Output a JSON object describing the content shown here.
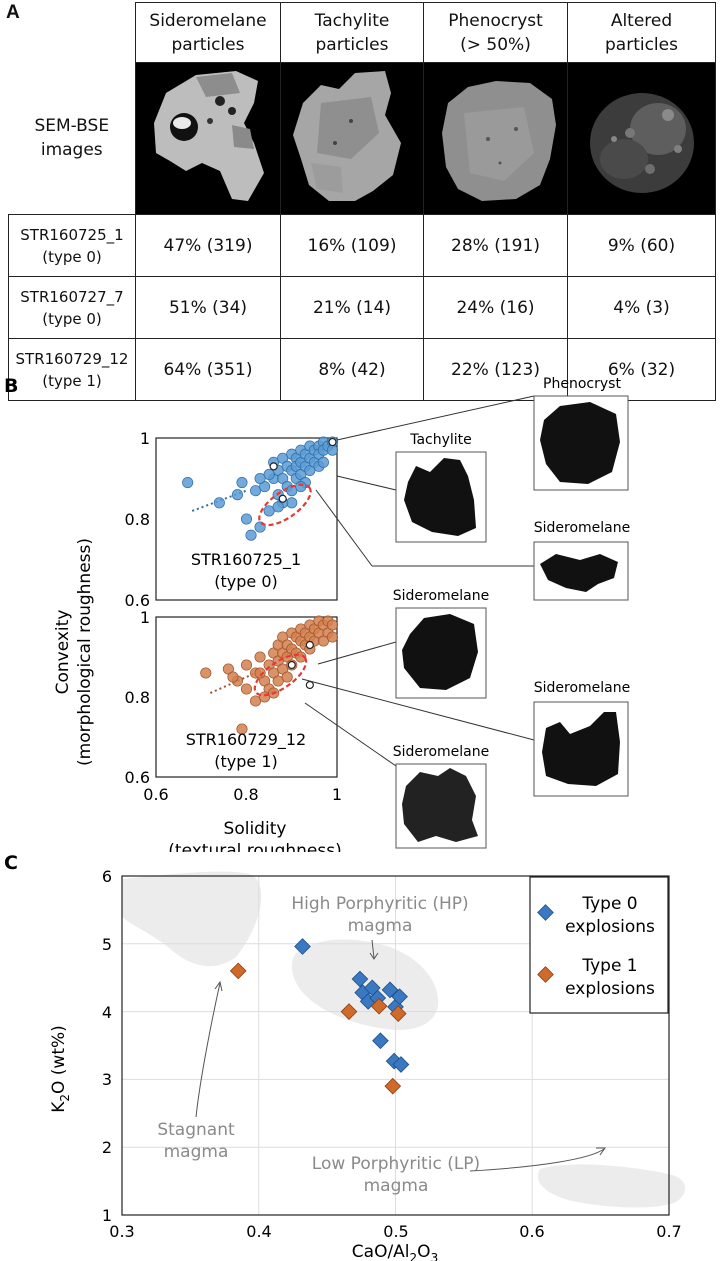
{
  "panel_a": {
    "label": "A",
    "columns": [
      "Sideromelane particles",
      "Tachylite particles",
      "Phenocryst (> 50%)",
      "Altered particles"
    ],
    "column_lines": [
      [
        "Sideromelane",
        "particles"
      ],
      [
        "Tachylite",
        "particles"
      ],
      [
        "Phenocryst",
        "(> 50%)"
      ],
      [
        "Altered",
        "particles"
      ]
    ],
    "image_row_label_lines": [
      "SEM-BSE",
      "images"
    ],
    "rows": [
      {
        "sample": "STR160725_1",
        "type": "(type 0)",
        "values": [
          "47% (319)",
          "16% (109)",
          "28% (191)",
          "9% (60)"
        ]
      },
      {
        "sample": "STR160727_7",
        "type": "(type 0)",
        "values": [
          "51% (34)",
          "21% (14)",
          "24% (16)",
          "4% (3)"
        ]
      },
      {
        "sample": "STR160729_12",
        "type": "(type 1)",
        "values": [
          "64% (351)",
          "8% (42)",
          "22% (123)",
          "6% (32)"
        ]
      }
    ]
  },
  "panel_b": {
    "label": "B",
    "y_label_lines": [
      "Convexity",
      "(morphological roughness)"
    ],
    "x_label_lines": [
      "Solidity",
      "(textural roughness)"
    ],
    "x_ticks": [
      "0.6",
      "0.8",
      "1"
    ],
    "y_ticks": [
      "0.6",
      "0.8",
      "1"
    ],
    "colors": {
      "type0": "#5b9bd5",
      "type0_edge": "#2e6ea6",
      "type1": "#d2804e",
      "type1_edge": "#a0522d",
      "ellipse": "#e53935"
    },
    "top": {
      "sample": "STR160725_1",
      "type": "(type 0)"
    },
    "bottom": {
      "sample": "STR160729_12",
      "type": "(type 1)"
    },
    "silhouettes": {
      "phenocryst": "Phenocryst",
      "tachylite": "Tachylite",
      "sideromelane_top": "Sideromelane",
      "sideromelane_b1": "Sideromelane",
      "sideromelane_b2": "Sideromelane",
      "sideromelane_b3": "Sideromelane"
    }
  },
  "chart_data": [
    {
      "type": "scatter",
      "title": "STR160725_1 (type 0)",
      "xlabel": "Solidity (textural roughness)",
      "ylabel": "Convexity (morphological roughness)",
      "xlim": [
        0.6,
        1.0
      ],
      "ylim": [
        0.6,
        1.0
      ],
      "points": [
        [
          0.67,
          0.89
        ],
        [
          0.74,
          0.84
        ],
        [
          0.78,
          0.86
        ],
        [
          0.79,
          0.89
        ],
        [
          0.8,
          0.8
        ],
        [
          0.82,
          0.87
        ],
        [
          0.83,
          0.78
        ],
        [
          0.84,
          0.88
        ],
        [
          0.85,
          0.82
        ],
        [
          0.86,
          0.9
        ],
        [
          0.86,
          0.94
        ],
        [
          0.87,
          0.92
        ],
        [
          0.87,
          0.86
        ],
        [
          0.88,
          0.95
        ],
        [
          0.88,
          0.9
        ],
        [
          0.89,
          0.93
        ],
        [
          0.89,
          0.88
        ],
        [
          0.9,
          0.96
        ],
        [
          0.9,
          0.92
        ],
        [
          0.9,
          0.87
        ],
        [
          0.91,
          0.95
        ],
        [
          0.91,
          0.93
        ],
        [
          0.91,
          0.9
        ],
        [
          0.92,
          0.97
        ],
        [
          0.92,
          0.94
        ],
        [
          0.92,
          0.91
        ],
        [
          0.93,
          0.96
        ],
        [
          0.93,
          0.93
        ],
        [
          0.94,
          0.98
        ],
        [
          0.94,
          0.95
        ],
        [
          0.94,
          0.92
        ],
        [
          0.95,
          0.97
        ],
        [
          0.95,
          0.94
        ],
        [
          0.96,
          0.98
        ],
        [
          0.96,
          0.96
        ],
        [
          0.97,
          0.99
        ],
        [
          0.97,
          0.97
        ],
        [
          0.98,
          0.98
        ],
        [
          0.99,
          0.99
        ],
        [
          0.96,
          0.93
        ],
        [
          0.93,
          0.89
        ],
        [
          0.9,
          0.84
        ],
        [
          0.88,
          0.84
        ],
        [
          0.97,
          0.94
        ],
        [
          0.99,
          0.97
        ],
        [
          0.85,
          0.91
        ],
        [
          0.83,
          0.9
        ],
        [
          0.81,
          0.76
        ],
        [
          0.87,
          0.83
        ],
        [
          0.92,
          0.88
        ]
      ],
      "highlighted": [
        [
          0.86,
          0.93
        ],
        [
          0.99,
          0.99
        ],
        [
          0.88,
          0.85
        ]
      ],
      "trend_line": [
        [
          0.68,
          0.82
        ],
        [
          0.8,
          0.87
        ]
      ],
      "ellipse": {
        "center": [
          0.885,
          0.835
        ],
        "label": "dashed region"
      }
    },
    {
      "type": "scatter",
      "title": "STR160729_12 (type 1)",
      "xlabel": "Solidity (textural roughness)",
      "ylabel": "Convexity (morphological roughness)",
      "xlim": [
        0.6,
        1.0
      ],
      "ylim": [
        0.6,
        1.0
      ],
      "points": [
        [
          0.71,
          0.86
        ],
        [
          0.76,
          0.87
        ],
        [
          0.78,
          0.84
        ],
        [
          0.8,
          0.88
        ],
        [
          0.8,
          0.82
        ],
        [
          0.82,
          0.86
        ],
        [
          0.82,
          0.79
        ],
        [
          0.83,
          0.9
        ],
        [
          0.84,
          0.84
        ],
        [
          0.85,
          0.88
        ],
        [
          0.85,
          0.82
        ],
        [
          0.86,
          0.91
        ],
        [
          0.86,
          0.86
        ],
        [
          0.87,
          0.93
        ],
        [
          0.87,
          0.89
        ],
        [
          0.87,
          0.84
        ],
        [
          0.88,
          0.95
        ],
        [
          0.88,
          0.91
        ],
        [
          0.88,
          0.87
        ],
        [
          0.89,
          0.93
        ],
        [
          0.89,
          0.9
        ],
        [
          0.9,
          0.96
        ],
        [
          0.9,
          0.92
        ],
        [
          0.9,
          0.88
        ],
        [
          0.91,
          0.95
        ],
        [
          0.91,
          0.91
        ],
        [
          0.92,
          0.97
        ],
        [
          0.92,
          0.94
        ],
        [
          0.92,
          0.9
        ],
        [
          0.93,
          0.96
        ],
        [
          0.93,
          0.93
        ],
        [
          0.94,
          0.98
        ],
        [
          0.94,
          0.95
        ],
        [
          0.94,
          0.92
        ],
        [
          0.95,
          0.97
        ],
        [
          0.95,
          0.94
        ],
        [
          0.96,
          0.99
        ],
        [
          0.96,
          0.96
        ],
        [
          0.97,
          0.98
        ],
        [
          0.98,
          0.99
        ],
        [
          0.98,
          0.96
        ],
        [
          0.99,
          0.98
        ],
        [
          0.79,
          0.72
        ],
        [
          0.84,
          0.8
        ],
        [
          0.86,
          0.81
        ],
        [
          0.89,
          0.85
        ],
        [
          0.97,
          0.94
        ],
        [
          0.99,
          0.95
        ],
        [
          0.77,
          0.85
        ],
        [
          0.83,
          0.86
        ]
      ],
      "highlighted": [
        [
          0.94,
          0.93
        ],
        [
          0.9,
          0.88
        ],
        [
          0.94,
          0.83
        ]
      ],
      "trend_line": [
        [
          0.72,
          0.81
        ],
        [
          0.82,
          0.86
        ]
      ],
      "ellipse": {
        "center": [
          0.875,
          0.855
        ],
        "label": "dashed region"
      }
    },
    {
      "type": "scatter",
      "title": "",
      "xlabel": "CaO/Al2O3",
      "ylabel": "K2O (wt%)",
      "xlim": [
        0.3,
        0.7
      ],
      "ylim": [
        1,
        6
      ],
      "x_ticks": [
        "0.3",
        "0.4",
        "0.5",
        "0.6",
        "0.7"
      ],
      "y_ticks": [
        "1",
        "2",
        "3",
        "4",
        "5",
        "6"
      ],
      "legend_position": "top-right",
      "series": [
        {
          "name": "Type 0 explosions",
          "color": "#3a78c2",
          "points": [
            [
              0.432,
              4.96
            ],
            [
              0.474,
              4.48
            ],
            [
              0.476,
              4.28
            ],
            [
              0.48,
              4.15
            ],
            [
              0.483,
              4.35
            ],
            [
              0.487,
              4.2
            ],
            [
              0.489,
              3.57
            ],
            [
              0.496,
              4.32
            ],
            [
              0.499,
              3.27
            ],
            [
              0.5,
              4.07
            ],
            [
              0.503,
              4.22
            ],
            [
              0.504,
              3.22
            ]
          ]
        },
        {
          "name": "Type 1 explosions",
          "color": "#d06a2a",
          "points": [
            [
              0.385,
              4.6
            ],
            [
              0.466,
              4.0
            ],
            [
              0.488,
              4.08
            ],
            [
              0.502,
              3.97
            ],
            [
              0.498,
              2.9
            ]
          ]
        }
      ],
      "annotations": [
        {
          "lines": [
            "High Porphyritic (HP)",
            "magma"
          ],
          "point_to": [
            0.487,
            4.55
          ]
        },
        {
          "lines": [
            "Stagnant",
            "magma"
          ],
          "point_to": [
            0.37,
            4.55
          ]
        },
        {
          "lines": [
            "Low Porphyritic (LP)",
            "magma"
          ],
          "point_to": [
            0.61,
            2.15
          ]
        }
      ]
    }
  ],
  "panel_c": {
    "label": "C",
    "y_label": "K",
    "y_label_sub": "2",
    "y_label_rest": "O (wt%)",
    "x_label_1": "CaO/Al",
    "x_label_sub1": "2",
    "x_label_2": "O",
    "x_label_sub2": "3",
    "legend": [
      {
        "lines": [
          "Type 0",
          "explosions"
        ],
        "color": "#3a78c2"
      },
      {
        "lines": [
          "Type 1",
          "explosions"
        ],
        "color": "#d06a2a"
      }
    ]
  }
}
